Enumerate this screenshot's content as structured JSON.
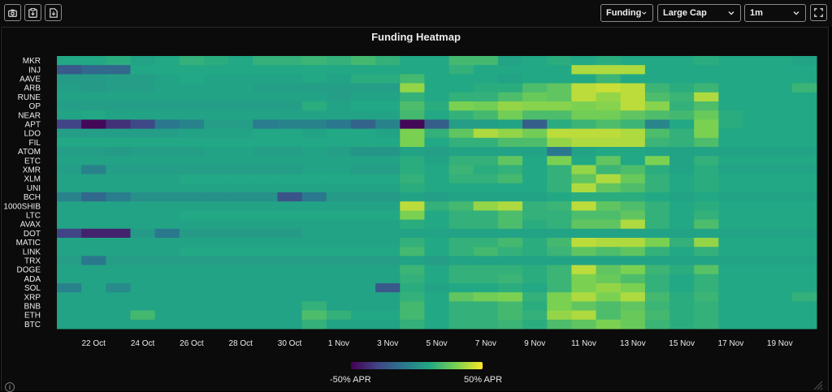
{
  "toolbar": {
    "icons": [
      "camera-icon",
      "clipboard-icon",
      "download-file-icon"
    ],
    "metric_select": "Funding",
    "category_select": "Large Cap",
    "timeframe_select": "1m",
    "fullscreen_icon": "fullscreen-icon"
  },
  "chart_data": {
    "type": "heatmap",
    "title": "Funding Heatmap",
    "rows": [
      "MKR",
      "INJ",
      "AAVE",
      "ARB",
      "RUNE",
      "OP",
      "NEAR",
      "APT",
      "LDO",
      "FIL",
      "ATOM",
      "ETC",
      "XMR",
      "XLM",
      "UNI",
      "BCH",
      "1000SHIB",
      "LTC",
      "AVAX",
      "DOT",
      "MATIC",
      "LINK",
      "TRX",
      "DOGE",
      "ADA",
      "SOL",
      "XRP",
      "BNB",
      "ETH",
      "BTC"
    ],
    "x_labels": [
      "22 Oct",
      "24 Oct",
      "26 Oct",
      "28 Oct",
      "30 Oct",
      "1 Nov",
      "3 Nov",
      "5 Nov",
      "7 Nov",
      "9 Nov",
      "11 Nov",
      "13 Nov",
      "15 Nov",
      "17 Nov",
      "19 Nov"
    ],
    "columns": 31,
    "color_scale": {
      "min": -50,
      "max": 50,
      "unit": "APR",
      "colormap": "viridis",
      "colors": [
        "#440154",
        "#414487",
        "#2a788e",
        "#22a884",
        "#7ad151",
        "#fde725"
      ]
    },
    "legend_min_label": "-50% APR",
    "legend_max_label": "50% APR",
    "values": [
      [
        10,
        10,
        12,
        8,
        10,
        14,
        12,
        10,
        14,
        14,
        16,
        14,
        18,
        14,
        10,
        10,
        18,
        18,
        8,
        10,
        12,
        10,
        12,
        10,
        10,
        10,
        12,
        10,
        10,
        10,
        8
      ],
      [
        -22,
        -16,
        -16,
        10,
        10,
        10,
        10,
        10,
        10,
        10,
        10,
        10,
        10,
        10,
        10,
        10,
        14,
        10,
        10,
        10,
        10,
        38,
        38,
        38,
        10,
        10,
        10,
        10,
        10,
        10,
        10
      ],
      [
        4,
        4,
        6,
        6,
        8,
        10,
        8,
        8,
        8,
        8,
        10,
        8,
        12,
        12,
        18,
        10,
        10,
        10,
        8,
        10,
        10,
        10,
        16,
        10,
        10,
        10,
        10,
        10,
        10,
        10,
        10
      ],
      [
        6,
        4,
        6,
        6,
        8,
        8,
        8,
        8,
        6,
        6,
        6,
        6,
        6,
        6,
        34,
        10,
        10,
        12,
        12,
        20,
        24,
        40,
        42,
        40,
        16,
        12,
        16,
        10,
        10,
        10,
        16
      ],
      [
        8,
        8,
        8,
        8,
        8,
        8,
        8,
        8,
        8,
        8,
        8,
        6,
        8,
        8,
        14,
        10,
        14,
        14,
        20,
        26,
        24,
        40,
        34,
        40,
        20,
        16,
        38,
        10,
        10,
        10,
        10
      ],
      [
        6,
        6,
        6,
        6,
        6,
        6,
        6,
        6,
        6,
        6,
        12,
        8,
        10,
        10,
        20,
        12,
        30,
        28,
        34,
        32,
        32,
        30,
        32,
        40,
        32,
        14,
        20,
        10,
        10,
        10,
        10
      ],
      [
        8,
        10,
        8,
        8,
        8,
        8,
        8,
        8,
        8,
        8,
        8,
        8,
        8,
        8,
        18,
        10,
        14,
        18,
        28,
        20,
        20,
        28,
        28,
        24,
        20,
        18,
        26,
        12,
        10,
        10,
        10
      ],
      [
        -30,
        -48,
        -36,
        -28,
        -10,
        -6,
        6,
        6,
        -8,
        -6,
        -6,
        -10,
        -18,
        -6,
        -48,
        -20,
        6,
        6,
        8,
        -20,
        12,
        16,
        20,
        16,
        -4,
        10,
        30,
        12,
        10,
        10,
        10
      ],
      [
        6,
        6,
        6,
        6,
        6,
        8,
        8,
        8,
        10,
        10,
        8,
        10,
        10,
        8,
        30,
        14,
        24,
        38,
        34,
        28,
        40,
        40,
        40,
        38,
        20,
        14,
        30,
        10,
        10,
        10,
        10
      ],
      [
        10,
        10,
        10,
        10,
        10,
        10,
        10,
        10,
        10,
        10,
        10,
        10,
        10,
        10,
        30,
        10,
        14,
        14,
        20,
        20,
        34,
        38,
        38,
        38,
        16,
        14,
        20,
        10,
        10,
        10,
        10
      ],
      [
        6,
        6,
        4,
        6,
        6,
        6,
        8,
        8,
        6,
        6,
        8,
        6,
        2,
        2,
        8,
        6,
        8,
        8,
        8,
        8,
        -10,
        8,
        10,
        10,
        8,
        8,
        8,
        8,
        8,
        8,
        8
      ],
      [
        8,
        8,
        8,
        8,
        8,
        8,
        8,
        8,
        8,
        8,
        8,
        8,
        8,
        8,
        12,
        8,
        14,
        14,
        24,
        10,
        30,
        10,
        24,
        10,
        30,
        8,
        14,
        10,
        10,
        10,
        10
      ],
      [
        6,
        -6,
        6,
        6,
        6,
        6,
        6,
        6,
        6,
        6,
        8,
        8,
        6,
        6,
        12,
        10,
        16,
        12,
        14,
        10,
        14,
        34,
        16,
        20,
        12,
        8,
        12,
        8,
        8,
        8,
        8
      ],
      [
        8,
        8,
        8,
        8,
        8,
        10,
        10,
        10,
        10,
        10,
        10,
        10,
        10,
        10,
        14,
        10,
        14,
        14,
        18,
        10,
        14,
        24,
        38,
        26,
        14,
        10,
        12,
        10,
        10,
        10,
        10
      ],
      [
        8,
        8,
        8,
        8,
        8,
        8,
        8,
        8,
        8,
        8,
        8,
        8,
        8,
        8,
        12,
        10,
        10,
        10,
        10,
        10,
        14,
        38,
        24,
        20,
        14,
        10,
        12,
        10,
        10,
        10,
        10
      ],
      [
        -6,
        -16,
        -8,
        0,
        0,
        0,
        0,
        0,
        0,
        -24,
        -10,
        4,
        4,
        4,
        8,
        6,
        8,
        8,
        8,
        8,
        10,
        12,
        12,
        12,
        10,
        8,
        10,
        8,
        8,
        8,
        8
      ],
      [
        8,
        8,
        8,
        8,
        8,
        8,
        8,
        8,
        8,
        8,
        8,
        8,
        8,
        8,
        40,
        14,
        18,
        34,
        38,
        14,
        16,
        40,
        24,
        20,
        14,
        10,
        12,
        10,
        10,
        10,
        10
      ],
      [
        8,
        8,
        8,
        8,
        8,
        10,
        10,
        10,
        10,
        10,
        10,
        10,
        10,
        10,
        30,
        10,
        14,
        14,
        20,
        14,
        14,
        20,
        20,
        24,
        14,
        10,
        14,
        10,
        10,
        10,
        10
      ],
      [
        8,
        8,
        8,
        8,
        8,
        8,
        8,
        8,
        8,
        8,
        8,
        8,
        8,
        8,
        12,
        10,
        14,
        14,
        20,
        12,
        14,
        24,
        24,
        38,
        14,
        10,
        20,
        10,
        10,
        10,
        10
      ],
      [
        -30,
        -40,
        -40,
        4,
        -10,
        4,
        4,
        4,
        4,
        4,
        8,
        8,
        8,
        8,
        8,
        8,
        8,
        8,
        8,
        8,
        8,
        8,
        8,
        8,
        8,
        8,
        8,
        8,
        8,
        8,
        8
      ],
      [
        8,
        8,
        8,
        8,
        8,
        8,
        8,
        8,
        8,
        8,
        8,
        8,
        8,
        8,
        14,
        10,
        14,
        14,
        18,
        12,
        18,
        40,
        38,
        38,
        30,
        14,
        34,
        10,
        10,
        10,
        10
      ],
      [
        8,
        8,
        8,
        8,
        8,
        10,
        10,
        10,
        10,
        10,
        10,
        10,
        10,
        10,
        18,
        10,
        14,
        18,
        14,
        12,
        16,
        24,
        20,
        24,
        14,
        10,
        14,
        10,
        10,
        10,
        10
      ],
      [
        6,
        -10,
        6,
        6,
        6,
        6,
        6,
        6,
        6,
        6,
        6,
        6,
        6,
        6,
        8,
        6,
        8,
        8,
        8,
        8,
        8,
        8,
        8,
        8,
        8,
        8,
        8,
        8,
        8,
        8,
        8
      ],
      [
        8,
        8,
        8,
        8,
        8,
        8,
        8,
        8,
        8,
        8,
        8,
        8,
        8,
        8,
        16,
        10,
        14,
        14,
        14,
        12,
        16,
        40,
        24,
        30,
        16,
        12,
        22,
        10,
        10,
        10,
        10
      ],
      [
        8,
        8,
        8,
        8,
        8,
        8,
        8,
        8,
        8,
        8,
        8,
        8,
        8,
        8,
        14,
        10,
        14,
        14,
        16,
        12,
        16,
        30,
        26,
        20,
        14,
        10,
        14,
        10,
        10,
        10,
        10
      ],
      [
        -6,
        8,
        -2,
        8,
        8,
        8,
        8,
        8,
        8,
        8,
        8,
        8,
        8,
        -22,
        12,
        8,
        10,
        10,
        12,
        10,
        16,
        30,
        34,
        30,
        14,
        10,
        14,
        10,
        10,
        10,
        10
      ],
      [
        8,
        8,
        8,
        8,
        8,
        8,
        8,
        8,
        8,
        8,
        8,
        8,
        8,
        8,
        14,
        10,
        24,
        28,
        30,
        14,
        30,
        38,
        30,
        38,
        18,
        12,
        16,
        10,
        10,
        10,
        14
      ],
      [
        8,
        8,
        8,
        8,
        8,
        8,
        8,
        8,
        8,
        8,
        14,
        8,
        8,
        8,
        18,
        10,
        14,
        14,
        18,
        12,
        30,
        24,
        20,
        24,
        16,
        12,
        14,
        10,
        10,
        10,
        10
      ],
      [
        8,
        8,
        8,
        18,
        8,
        8,
        8,
        8,
        8,
        8,
        20,
        14,
        10,
        10,
        18,
        10,
        14,
        14,
        18,
        14,
        34,
        38,
        20,
        26,
        18,
        12,
        14,
        10,
        10,
        10,
        10
      ],
      [
        8,
        8,
        8,
        8,
        8,
        8,
        8,
        8,
        8,
        8,
        14,
        8,
        8,
        8,
        14,
        10,
        14,
        14,
        16,
        12,
        20,
        24,
        30,
        26,
        16,
        12,
        14,
        10,
        10,
        10,
        10
      ]
    ]
  }
}
